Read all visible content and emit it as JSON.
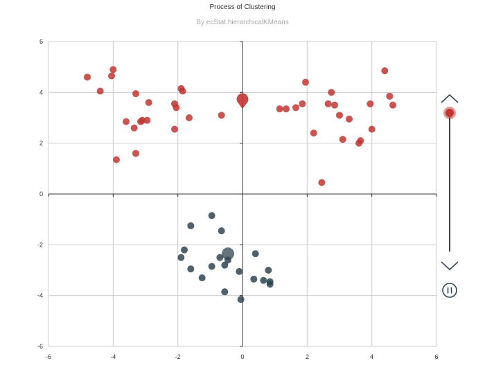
{
  "title": "Process of Clustering",
  "subtitle": "By ecStat.hierarchicalKMeans",
  "colors": {
    "cluster_red": "#c23531",
    "cluster_dark": "#2f4554",
    "grid": "#cccccc",
    "axis": "#333333"
  },
  "timeline": {
    "up_icon": "chevron-up-icon",
    "down_icon": "chevron-down-icon",
    "pause_icon": "pause-icon",
    "current_step_fraction": 0.0
  },
  "chart_data": {
    "type": "scatter",
    "xlim": [
      -6,
      6
    ],
    "ylim": [
      -6,
      6
    ],
    "x_ticks": [
      "-6",
      "-4",
      "-2",
      "0",
      "2",
      "4",
      "6"
    ],
    "y_ticks": [
      "6",
      "4",
      "2",
      "0",
      "-2",
      "-4",
      "-6"
    ],
    "grid": true,
    "series": [
      {
        "color": "#c23531",
        "points": [
          [
            -4.8,
            4.6
          ],
          [
            -4.4,
            4.05
          ],
          [
            -4.0,
            4.9
          ],
          [
            -4.05,
            4.65
          ],
          [
            -3.3,
            3.95
          ],
          [
            -3.6,
            2.85
          ],
          [
            -3.35,
            2.6
          ],
          [
            -3.1,
            2.9
          ],
          [
            -3.15,
            2.85
          ],
          [
            -2.95,
            2.9
          ],
          [
            -2.9,
            3.6
          ],
          [
            -3.9,
            1.35
          ],
          [
            -3.3,
            1.6
          ],
          [
            -2.1,
            2.55
          ],
          [
            -1.9,
            4.15
          ],
          [
            -1.85,
            4.05
          ],
          [
            -2.1,
            3.55
          ],
          [
            -2.05,
            3.4
          ],
          [
            -1.65,
            3.0
          ],
          [
            -0.65,
            3.1
          ],
          [
            1.15,
            3.35
          ],
          [
            1.35,
            3.35
          ],
          [
            1.65,
            3.4
          ],
          [
            1.85,
            3.55
          ],
          [
            1.95,
            4.4
          ],
          [
            2.2,
            2.4
          ],
          [
            2.45,
            0.45
          ],
          [
            2.65,
            3.55
          ],
          [
            2.75,
            4.0
          ],
          [
            2.85,
            3.5
          ],
          [
            3.0,
            3.1
          ],
          [
            3.1,
            2.15
          ],
          [
            3.3,
            2.95
          ],
          [
            3.6,
            2.0
          ],
          [
            3.65,
            2.1
          ],
          [
            3.95,
            3.55
          ],
          [
            4.0,
            2.55
          ],
          [
            4.4,
            4.85
          ],
          [
            4.55,
            3.85
          ],
          [
            4.65,
            3.5
          ]
        ],
        "centroid": [
          0.0,
          3.65
        ]
      },
      {
        "color": "#2f4554",
        "points": [
          [
            -1.6,
            -1.25
          ],
          [
            -0.95,
            -0.85
          ],
          [
            -0.65,
            -1.45
          ],
          [
            -1.8,
            -2.2
          ],
          [
            -1.9,
            -2.5
          ],
          [
            -1.6,
            -2.95
          ],
          [
            -1.25,
            -3.3
          ],
          [
            -0.95,
            -2.85
          ],
          [
            -0.7,
            -2.5
          ],
          [
            -0.55,
            -2.8
          ],
          [
            -0.45,
            -2.6
          ],
          [
            -0.1,
            -3.05
          ],
          [
            0.4,
            -2.35
          ],
          [
            0.35,
            -3.35
          ],
          [
            0.65,
            -3.4
          ],
          [
            0.8,
            -3.0
          ],
          [
            0.85,
            -3.45
          ],
          [
            0.85,
            -3.55
          ],
          [
            -0.55,
            -3.85
          ],
          [
            -0.05,
            -4.15
          ]
        ],
        "centroid": [
          -0.45,
          -2.35
        ]
      }
    ]
  }
}
